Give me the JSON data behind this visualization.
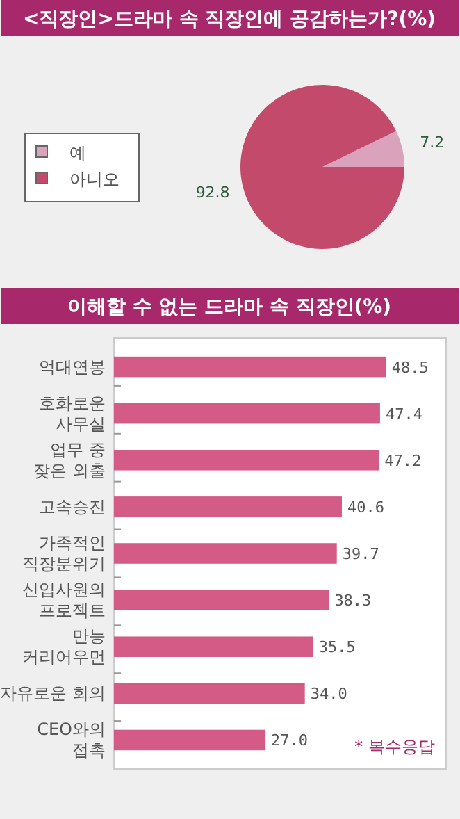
{
  "chart_data": [
    {
      "type": "pie",
      "title": "<직장인>드라마 속 직장인에 공감하는가?(%)",
      "categories": [
        "예",
        "아니오"
      ],
      "values": [
        7.2,
        92.8
      ],
      "colors": [
        "#dba3bb",
        "#c44a6c"
      ],
      "legend": "left",
      "data_labels": true
    },
    {
      "type": "bar",
      "orientation": "horizontal",
      "title": "이해할 수 없는 드라마 속 직장인(%)",
      "categories": [
        "억대연봉",
        "호화로운\n사무실",
        "업무 중\n잦은 외출",
        "고속승진",
        "가족적인\n직장분위기",
        "신입사원의\n프로젝트",
        "만능\n커리어우먼",
        "자유로운 회의",
        "CEO와의\n접촉"
      ],
      "values": [
        48.5,
        47.4,
        47.2,
        40.6,
        39.7,
        38.3,
        35.5,
        34.0,
        27.0
      ],
      "value_labels": [
        "48.5",
        "47.4",
        "47.2",
        "40.6",
        "39.7",
        "38.3",
        "35.5",
        "34.0",
        "27.0"
      ],
      "color": "#d45b85",
      "annotations": [
        "* 복수응답"
      ]
    }
  ]
}
